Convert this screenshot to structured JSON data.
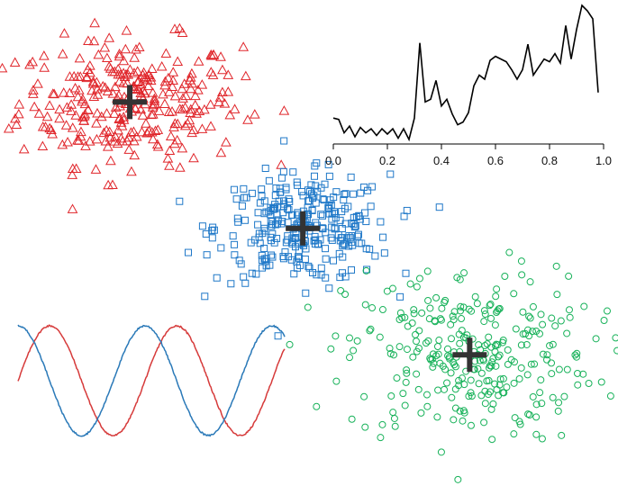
{
  "colors": {
    "cluster_red": "#e0262b",
    "cluster_blue": "#1f78c8",
    "cluster_green": "#18b25a",
    "centroid": "#333333",
    "line_black": "#000000",
    "wave_red": "#d63a3a",
    "wave_blue": "#2a79b8"
  },
  "chart_data": [
    {
      "type": "scatter",
      "title": "",
      "xlabel": "",
      "ylabel": "",
      "axes_visible": false,
      "grid": false,
      "legend": "none",
      "centroid_marker": "plus",
      "series": [
        {
          "marker": "triangle-open",
          "color": "#e0262b",
          "count": 300,
          "centroid": [
            0.21,
            0.79
          ],
          "spread": [
            0.09,
            0.065
          ]
        },
        {
          "marker": "square-open",
          "color": "#1f78c8",
          "count": 300,
          "centroid": [
            0.49,
            0.53
          ],
          "spread": [
            0.07,
            0.055
          ]
        },
        {
          "marker": "circle-open",
          "color": "#18b25a",
          "count": 300,
          "centroid": [
            0.76,
            0.27
          ],
          "spread": [
            0.1,
            0.09
          ]
        }
      ]
    },
    {
      "type": "line",
      "title": "",
      "xlabel": "",
      "ylabel": "",
      "grid": false,
      "legend": "none",
      "xlim": [
        0,
        1
      ],
      "x_ticks": [
        "0.0",
        "0.2",
        "0.4",
        "0.6",
        "0.8",
        "1.0"
      ],
      "y_axis_visible": false,
      "x": [
        0.0,
        0.02,
        0.04,
        0.06,
        0.08,
        0.1,
        0.12,
        0.14,
        0.16,
        0.18,
        0.2,
        0.22,
        0.24,
        0.26,
        0.28,
        0.3,
        0.32,
        0.34,
        0.36,
        0.38,
        0.4,
        0.42,
        0.44,
        0.46,
        0.48,
        0.5,
        0.52,
        0.54,
        0.56,
        0.58,
        0.6,
        0.62,
        0.64,
        0.66,
        0.68,
        0.7,
        0.72,
        0.74,
        0.76,
        0.78,
        0.8,
        0.82,
        0.84,
        0.86,
        0.88,
        0.9,
        0.92,
        0.94,
        0.96,
        0.98
      ],
      "y": [
        0.16,
        0.15,
        0.05,
        0.1,
        0.02,
        0.09,
        0.05,
        0.08,
        0.03,
        0.08,
        0.04,
        0.08,
        0.01,
        0.08,
        0.0,
        0.16,
        0.72,
        0.28,
        0.3,
        0.44,
        0.25,
        0.3,
        0.19,
        0.11,
        0.13,
        0.2,
        0.4,
        0.48,
        0.45,
        0.59,
        0.62,
        0.6,
        0.58,
        0.52,
        0.45,
        0.52,
        0.71,
        0.48,
        0.54,
        0.6,
        0.58,
        0.64,
        0.57,
        0.85,
        0.6,
        0.82,
        1.0,
        0.96,
        0.9,
        0.35
      ]
    },
    {
      "type": "line",
      "title": "",
      "xlabel": "",
      "ylabel": "",
      "axes_visible": false,
      "grid": false,
      "legend": "none",
      "xlim": [
        0,
        13.2
      ],
      "ylim": [
        -1,
        1
      ],
      "series": [
        {
          "function": "sin",
          "color": "#d63a3a"
        },
        {
          "function": "cos",
          "color": "#2a79b8"
        }
      ]
    }
  ]
}
